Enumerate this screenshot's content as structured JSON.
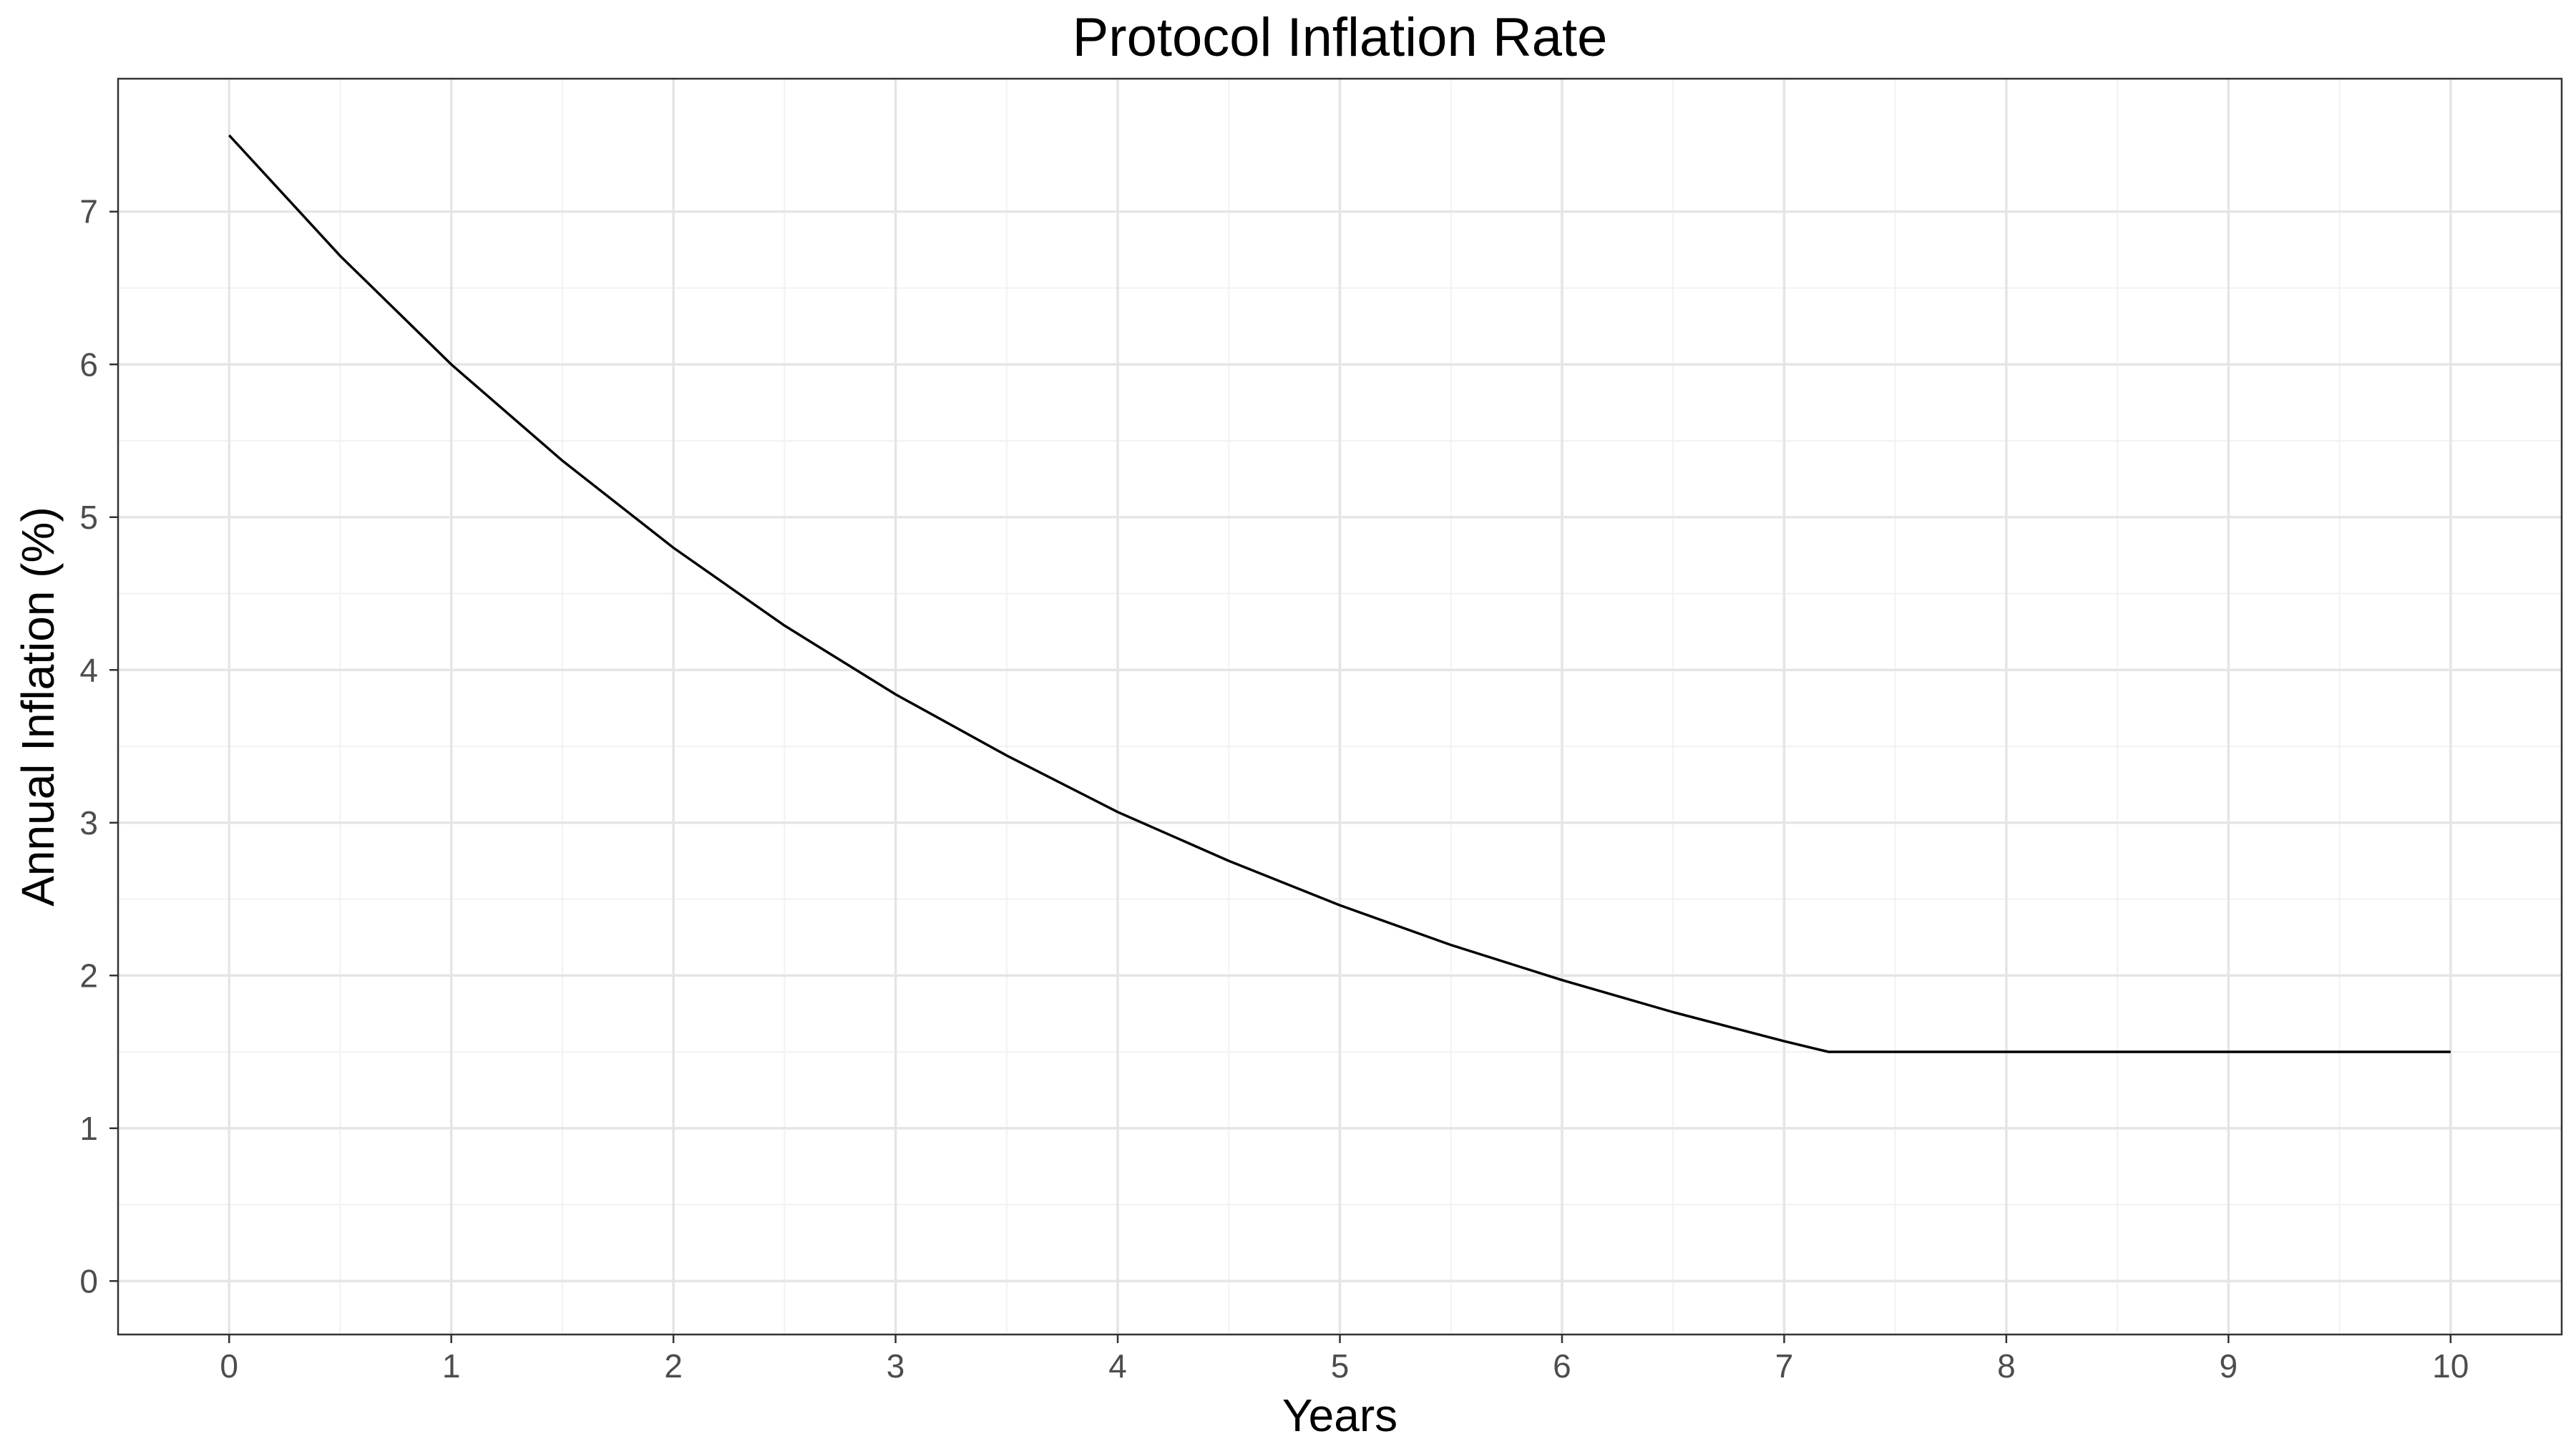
{
  "chart_data": {
    "type": "line",
    "title": "Protocol Inflation Rate",
    "xlabel": "Years",
    "ylabel": "Annual Inflation (%)",
    "xlim": [
      -0.5,
      10.5
    ],
    "ylim": [
      -0.35,
      7.87
    ],
    "x_ticks": [
      0,
      1,
      2,
      3,
      4,
      5,
      6,
      7,
      8,
      9,
      10
    ],
    "y_ticks": [
      0,
      1,
      2,
      3,
      4,
      5,
      6,
      7
    ],
    "grid": true,
    "legend": "none",
    "series": [
      {
        "color": "#000000",
        "x": [
          0,
          0.5,
          1,
          1.5,
          2,
          2.5,
          3,
          3.5,
          4,
          4.5,
          5,
          5.5,
          6,
          6.5,
          7,
          7.2,
          7.5,
          8,
          8.5,
          9,
          9.5,
          10
        ],
        "y": [
          7.5,
          6.71,
          6.0,
          5.37,
          4.8,
          4.29,
          3.84,
          3.44,
          3.07,
          2.75,
          2.46,
          2.2,
          1.97,
          1.76,
          1.57,
          1.5,
          1.5,
          1.5,
          1.5,
          1.5,
          1.5,
          1.5
        ]
      }
    ]
  }
}
